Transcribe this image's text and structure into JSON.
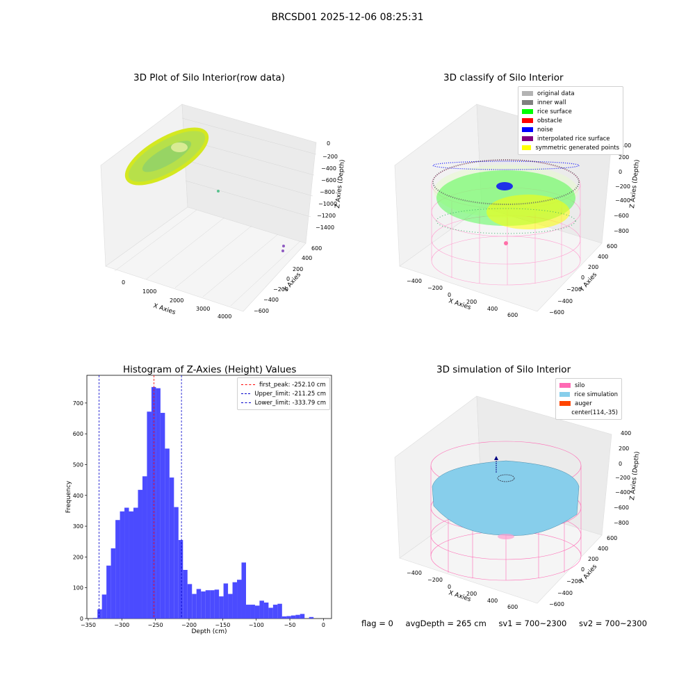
{
  "figure": {
    "suptitle": "BRCSD01 2025-12-06 08:25:31",
    "footer": {
      "flag": "flag = 0",
      "avg_depth": "avgDepth = 265 cm",
      "sv1": "sv1 = 700~2300",
      "sv2": "sv2 = 700~2300"
    }
  },
  "panels": {
    "raw": {
      "title": "3D Plot of Silo Interior(row data)",
      "xlabel": "X Axies",
      "ylabel": "Y Axies",
      "zlabel": "Z Axies (Depth)",
      "xticks": [
        "0",
        "1000",
        "2000",
        "3000",
        "4000"
      ],
      "yticks": [
        "600",
        "400",
        "200",
        "0",
        "−200",
        "−400",
        "−600"
      ],
      "zticks": [
        "0",
        "−200",
        "−400",
        "−600",
        "−800",
        "−1000",
        "−1200",
        "−1400"
      ]
    },
    "classify": {
      "title": "3D classify of Silo Interior",
      "xlabel": "X Axies",
      "ylabel": "Y Axies",
      "zlabel": "Z Axies (Depth)",
      "xticks": [
        "−400",
        "−200",
        "0",
        "200",
        "400",
        "600"
      ],
      "yticks": [
        "600",
        "400",
        "200",
        "0",
        "−200",
        "−400",
        "−600"
      ],
      "zticks": [
        "400",
        "200",
        "0",
        "−200",
        "−400",
        "−600",
        "−800"
      ],
      "legend": [
        {
          "label": "original data",
          "color": "#b3b3b3"
        },
        {
          "label": "inner wall",
          "color": "#808080"
        },
        {
          "label": "rice surface",
          "color": "#00ff00"
        },
        {
          "label": "obstacle",
          "color": "#ff0000"
        },
        {
          "label": "noise",
          "color": "#0000ff"
        },
        {
          "label": "interpolated rice surface",
          "color": "#800080"
        },
        {
          "label": "symmetric generated points",
          "color": "#ffff00"
        }
      ]
    },
    "simulation": {
      "title": "3D simulation of Silo Interior",
      "xlabel": "X Axies",
      "ylabel": "Y Axies",
      "zlabel": "Z Axies (Depth)",
      "xticks": [
        "−400",
        "−200",
        "0",
        "200",
        "400",
        "600"
      ],
      "yticks": [
        "600",
        "400",
        "200",
        "0",
        "−200",
        "−400",
        "−600"
      ],
      "zticks": [
        "400",
        "200",
        "0",
        "−200",
        "−400",
        "−600",
        "−800"
      ],
      "legend": [
        {
          "label": "silo",
          "color": "#ff69b4"
        },
        {
          "label": "rice simulation",
          "color": "#87ceeb"
        },
        {
          "label": "auger",
          "color": "#ff4500"
        },
        {
          "label": "center(114,-35)",
          "color": ""
        }
      ]
    }
  },
  "chart_data": {
    "type": "bar",
    "title": "Histogram of Z-Axies (Height) Values",
    "xlabel": "Depth (cm)",
    "ylabel": "Frequency",
    "xlim": [
      -352,
      12
    ],
    "ylim": [
      0,
      790
    ],
    "xticks": [
      -350,
      -300,
      -250,
      -200,
      -150,
      -100,
      -50,
      0
    ],
    "yticks": [
      0,
      100,
      200,
      300,
      400,
      500,
      600,
      700
    ],
    "bin_width": 6.7,
    "bin_start": -343,
    "values": [
      2,
      30,
      78,
      172,
      228,
      320,
      348,
      360,
      348,
      360,
      418,
      462,
      672,
      752,
      748,
      668,
      552,
      458,
      362,
      255,
      158,
      112,
      80,
      96,
      88,
      92,
      92,
      94,
      72,
      114,
      80,
      118,
      126,
      182,
      45,
      45,
      42,
      58,
      52,
      35,
      45,
      48,
      7,
      8,
      10,
      12,
      15,
      0,
      5
    ],
    "bar_color": "#4b4bff",
    "vlines": [
      {
        "label": "first_peak: -252.10 cm",
        "x": -252.1,
        "color": "#ff0000"
      },
      {
        "label": "Upper_limit: -211.25 cm",
        "x": -211.25,
        "color": "#0000cc"
      },
      {
        "label": "Lower_limit: -333.79 cm",
        "x": -333.79,
        "color": "#0000cc"
      }
    ],
    "legend_position": "top-right"
  }
}
